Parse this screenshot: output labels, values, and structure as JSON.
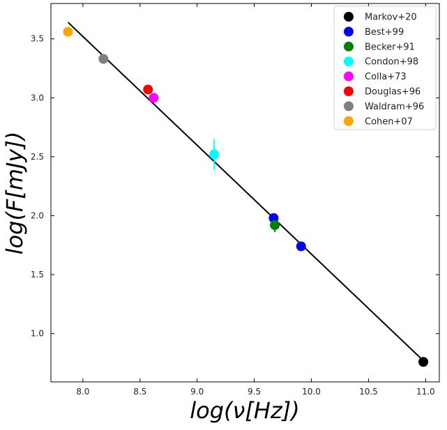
{
  "chart_data": {
    "type": "scatter",
    "title": "",
    "xlabel": "log(ν[Hz])",
    "ylabel": "log(F[mJy])",
    "xlim": [
      7.72,
      11.12
    ],
    "ylim": [
      0.59,
      3.8
    ],
    "xticks": [
      8.0,
      8.5,
      9.0,
      9.5,
      10.0,
      10.5,
      11.0
    ],
    "yticks": [
      1.0,
      1.5,
      2.0,
      2.5,
      3.0,
      3.5
    ],
    "xtick_labels": [
      "8.0",
      "8.5",
      "9.0",
      "9.5",
      "10.0",
      "10.5",
      "11.0"
    ],
    "ytick_labels": [
      "1.0",
      "1.5",
      "2.0",
      "2.5",
      "3.0",
      "3.5"
    ],
    "grid": false,
    "legend_position": "top-right",
    "fit_line": {
      "color": "#000000",
      "x": [
        7.87,
        10.98
      ],
      "y": [
        3.64,
        0.77
      ]
    },
    "series": [
      {
        "name": "Markov+20",
        "color": "#000000",
        "points": [
          {
            "x": 10.98,
            "y": 0.76,
            "err": 0
          }
        ]
      },
      {
        "name": "Best+99",
        "color": "#0000ff",
        "points": [
          {
            "x": 9.67,
            "y": 1.98,
            "err": 0
          },
          {
            "x": 9.91,
            "y": 1.74,
            "err": 0
          }
        ]
      },
      {
        "name": "Becker+91",
        "color": "#008000",
        "points": [
          {
            "x": 9.68,
            "y": 1.92,
            "err": 0.06
          }
        ]
      },
      {
        "name": "Condon+98",
        "color": "#00ffff",
        "points": [
          {
            "x": 9.15,
            "y": 2.52,
            "err": 0.13
          }
        ]
      },
      {
        "name": "Colla+73",
        "color": "#ff00ff",
        "points": [
          {
            "x": 8.62,
            "y": 3.0,
            "err": 0
          }
        ]
      },
      {
        "name": "Douglas+96",
        "color": "#ff0000",
        "points": [
          {
            "x": 8.57,
            "y": 3.07,
            "err": 0
          }
        ]
      },
      {
        "name": "Waldram+96",
        "color": "#808080",
        "points": [
          {
            "x": 8.18,
            "y": 3.33,
            "err": 0
          }
        ]
      },
      {
        "name": "Cohen+07",
        "color": "#ffa500",
        "points": [
          {
            "x": 7.87,
            "y": 3.56,
            "err": 0
          }
        ]
      }
    ]
  }
}
